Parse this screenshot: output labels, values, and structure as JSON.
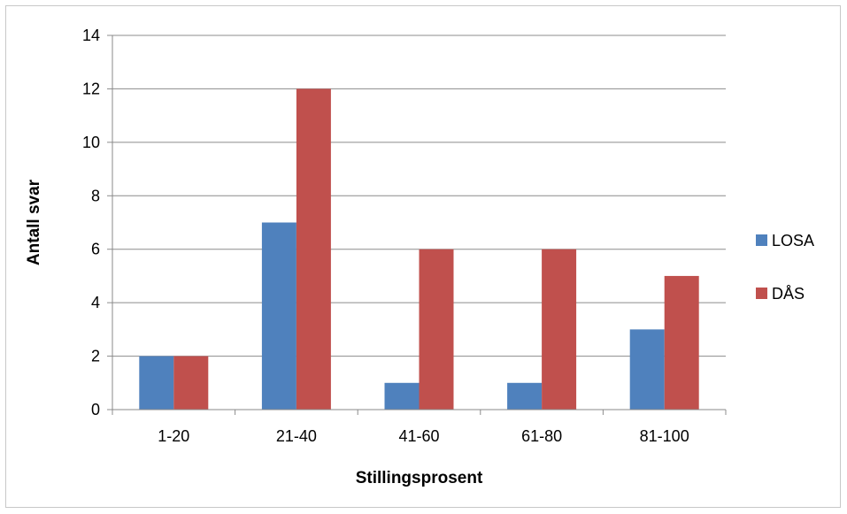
{
  "chart_data": {
    "type": "bar",
    "categories": [
      "1-20",
      "21-40",
      "41-60",
      "61-80",
      "81-100"
    ],
    "series": [
      {
        "name": "LOSA",
        "values": [
          2,
          7,
          1,
          1,
          3
        ],
        "color": "#4F81BD"
      },
      {
        "name": "DÅS",
        "values": [
          2,
          12,
          6,
          6,
          5
        ],
        "color": "#C0504D"
      }
    ],
    "xlabel": "Stillingsprosent",
    "ylabel": "Antall svar",
    "ylim": [
      0,
      14
    ],
    "yticks": [
      0,
      2,
      4,
      6,
      8,
      10,
      12,
      14
    ],
    "grid": true,
    "legend": "right"
  }
}
